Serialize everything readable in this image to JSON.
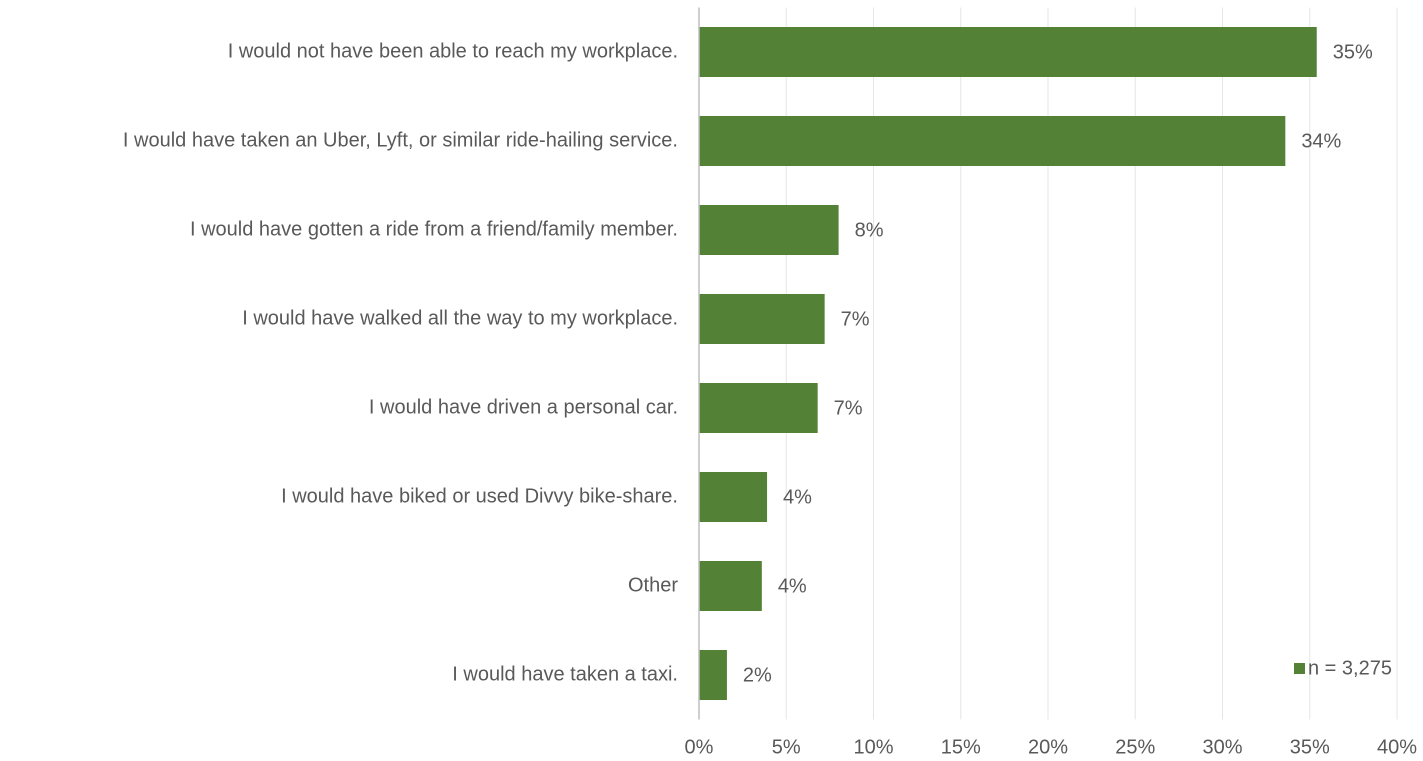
{
  "chart_data": {
    "type": "bar",
    "orientation": "horizontal",
    "categories": [
      "I would not have been able to reach my workplace.",
      "I would have taken an Uber, Lyft, or similar ride-hailing service.",
      "I would have gotten a ride from a friend/family member.",
      "I would have walked all the way to my workplace.",
      "I would have driven a personal car.",
      "I would have biked or used Divvy bike-share.",
      "Other",
      "I would have taken a taxi."
    ],
    "series": [
      {
        "name": "n = 3,275",
        "color": "#538135",
        "values": [
          35.4,
          33.6,
          8.0,
          7.2,
          6.8,
          3.9,
          3.6,
          1.6
        ],
        "value_labels": [
          "35%",
          "34%",
          "8%",
          "7%",
          "7%",
          "4%",
          "4%",
          "2%"
        ]
      }
    ],
    "xlim": [
      0,
      40
    ],
    "xticks": [
      {
        "value": 0,
        "label": "0%"
      },
      {
        "value": 5,
        "label": "5%"
      },
      {
        "value": 10,
        "label": "10%"
      },
      {
        "value": 15,
        "label": "15%"
      },
      {
        "value": 20,
        "label": "20%"
      },
      {
        "value": 25,
        "label": "25%"
      },
      {
        "value": 30,
        "label": "30%"
      },
      {
        "value": 35,
        "label": "35%"
      },
      {
        "value": 40,
        "label": "40%"
      }
    ],
    "grid": true,
    "legend": "bottom-right"
  }
}
